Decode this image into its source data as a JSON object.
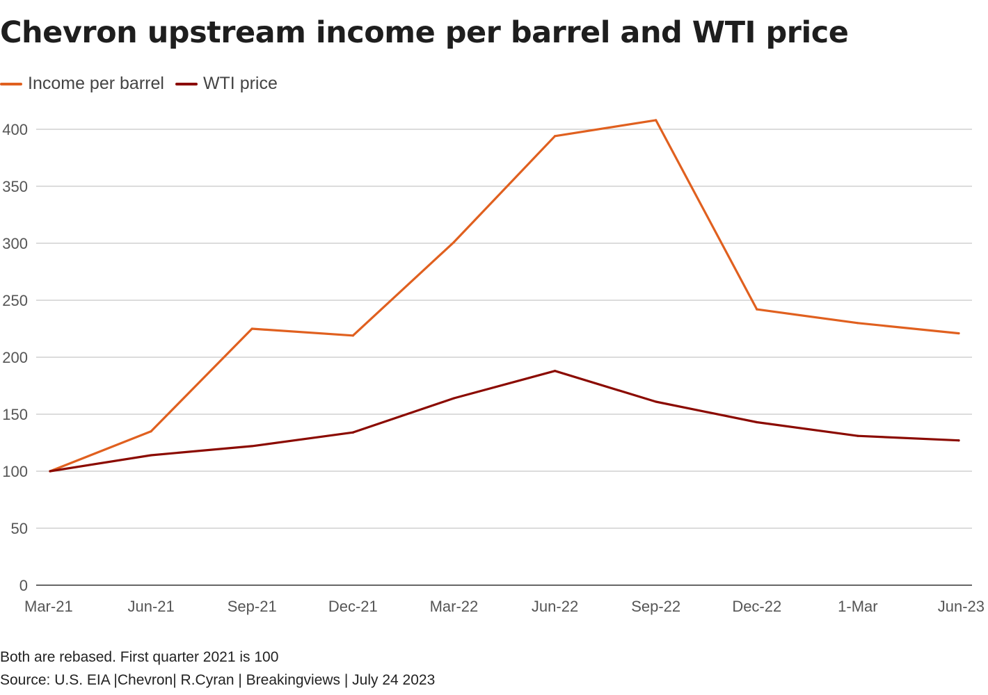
{
  "chart_data": {
    "type": "line",
    "title": "Chevron upstream income per barrel and WTI price",
    "categories": [
      "Mar-21",
      "Jun-21",
      "Sep-21",
      "Dec-21",
      "Mar-22",
      "Jun-22",
      "Sep-22",
      "Dec-22",
      "1-Mar",
      "Jun-23"
    ],
    "series": [
      {
        "name": "Income per barrel",
        "color": "#e0601f",
        "values": [
          100,
          135,
          225,
          219,
          301,
          394,
          408,
          242,
          230,
          221
        ]
      },
      {
        "name": "WTI price",
        "color": "#8b0a00",
        "values": [
          100,
          114,
          122,
          134,
          164,
          188,
          161,
          143,
          131,
          127
        ]
      }
    ],
    "yticks": [
      "0",
      "50",
      "100",
      "150",
      "200",
      "250",
      "300",
      "350",
      "400"
    ],
    "ylim": [
      0,
      400
    ],
    "xlabel": "",
    "ylabel": "",
    "grid": true,
    "legend": "top-left",
    "note": "Both are rebased. First quarter 2021 is 100",
    "source": "Source: U.S. EIA |Chevron| R.Cyran | Breakingviews | July 24 2023"
  }
}
